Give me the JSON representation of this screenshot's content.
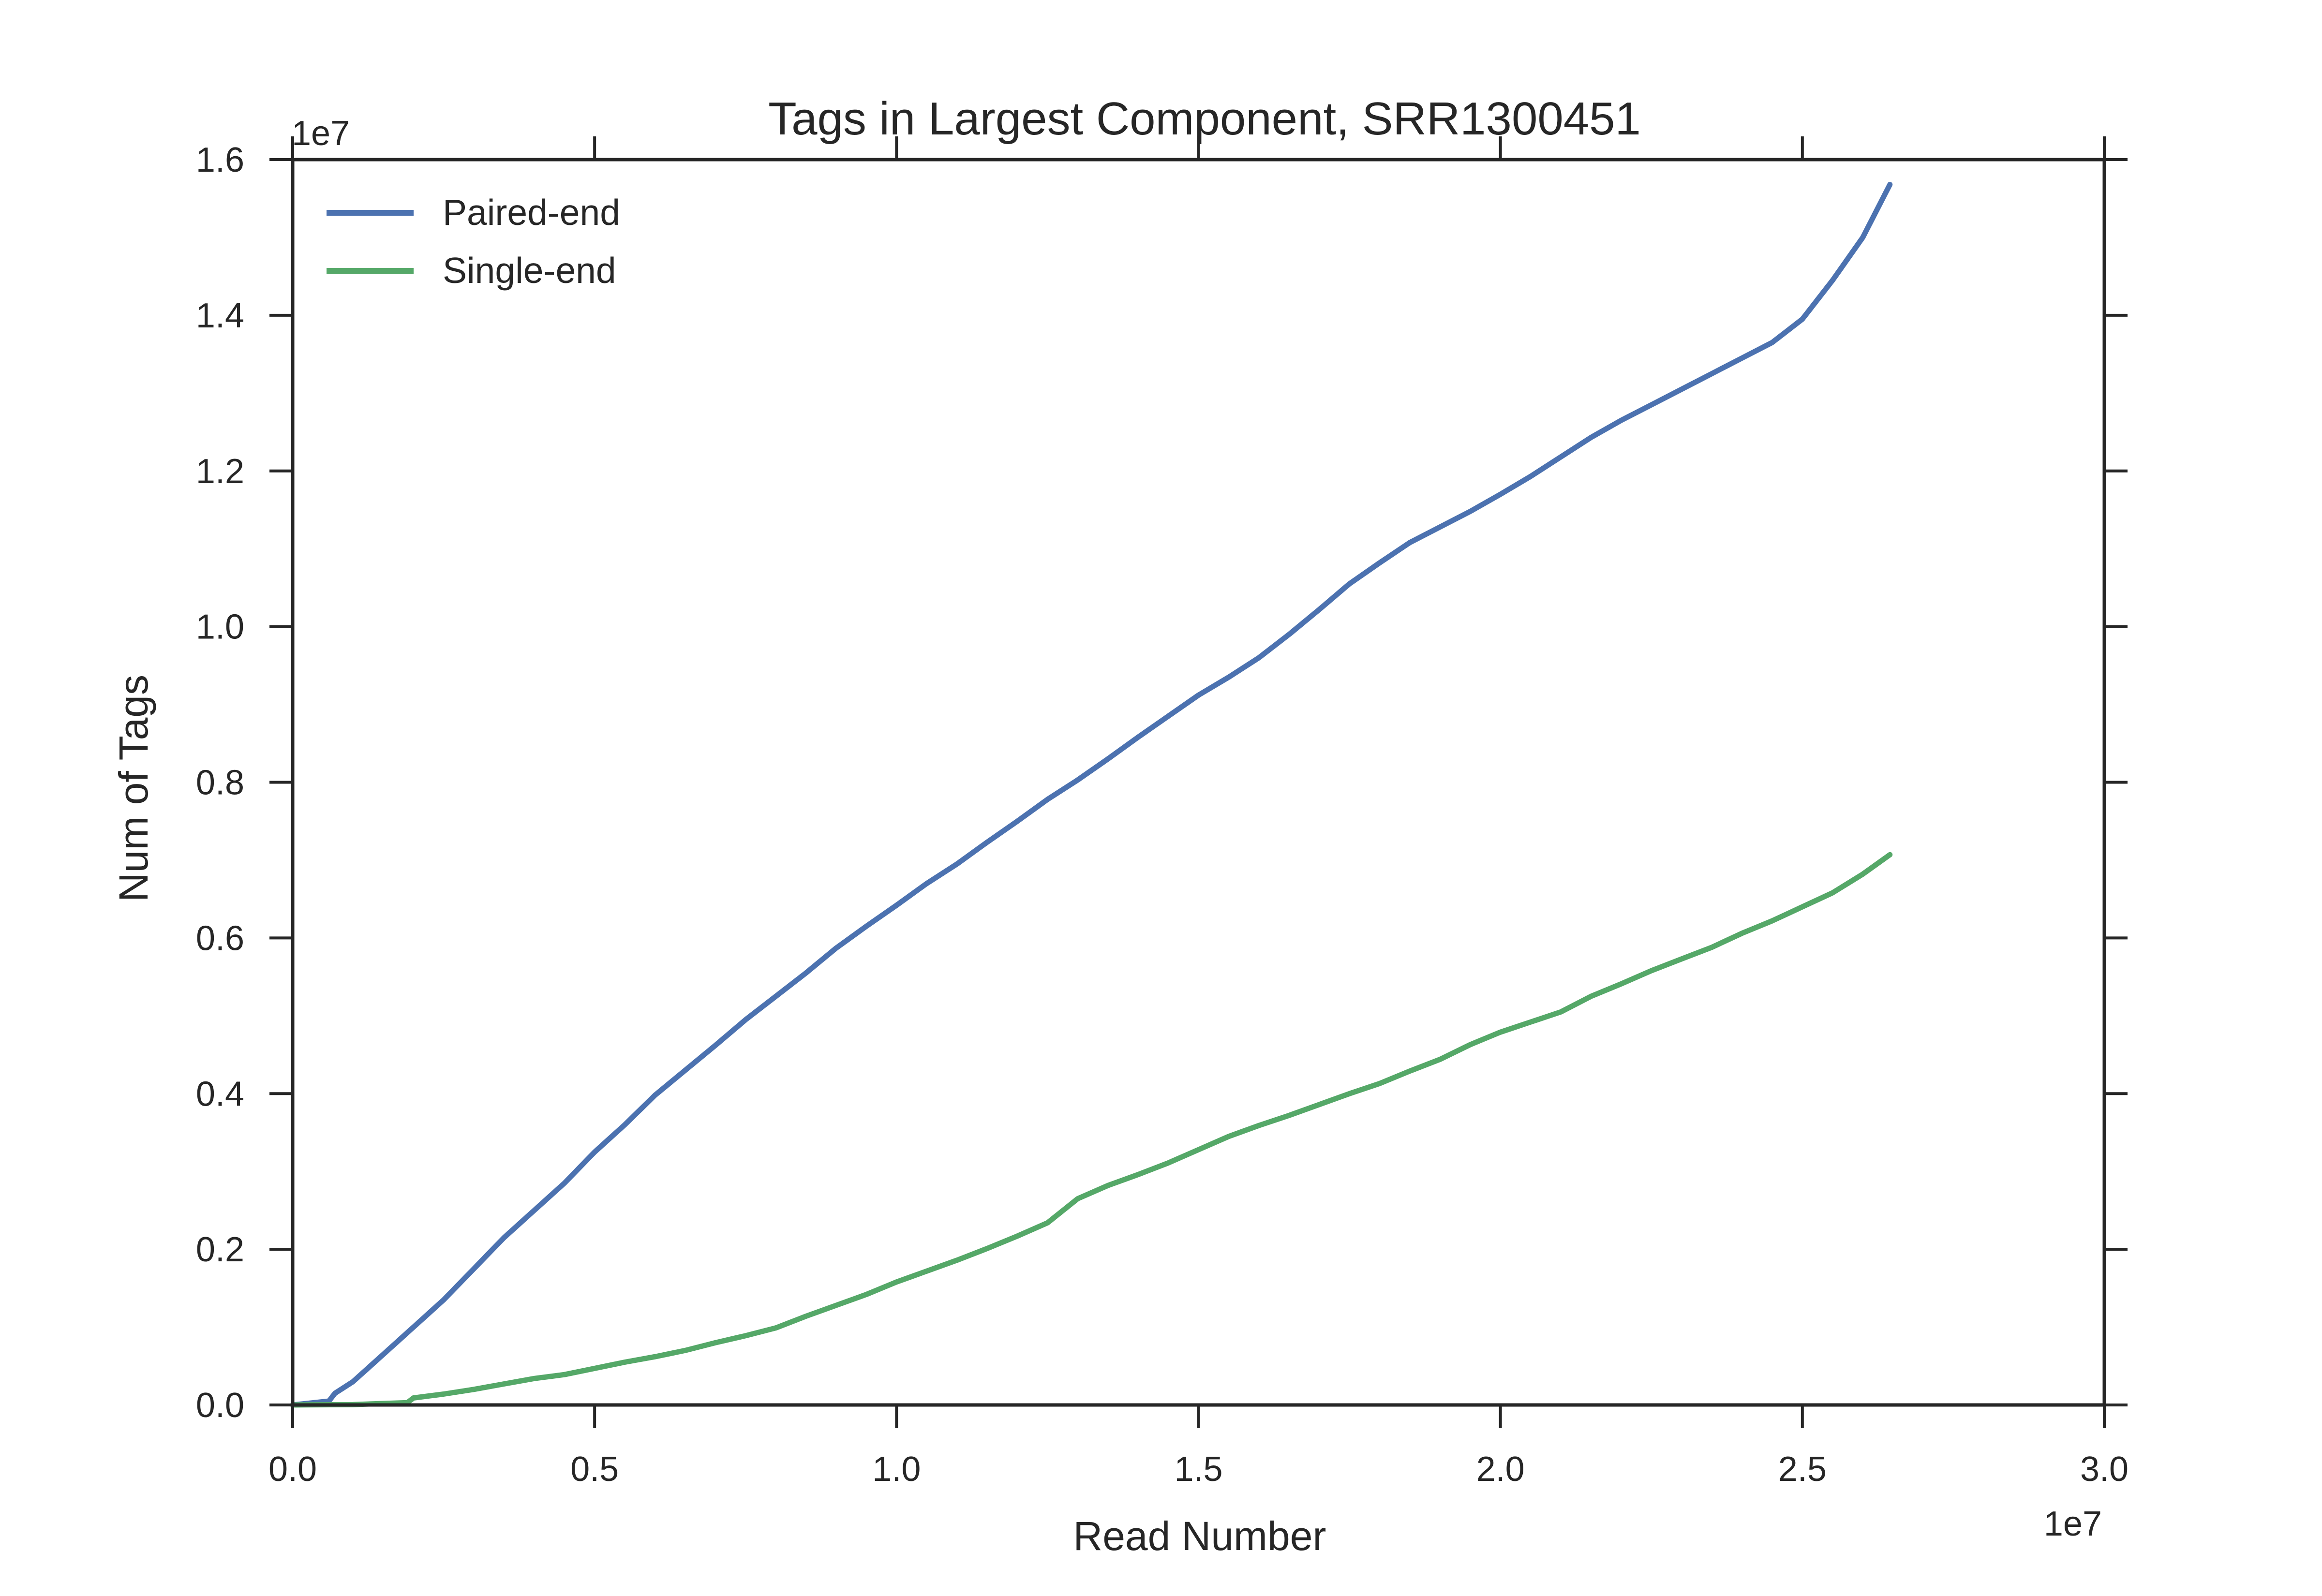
{
  "chart_data": {
    "type": "line",
    "title": "Tags in Largest Component, SRR1300451",
    "xlabel": "Read Number",
    "ylabel": "Num of Tags",
    "x_offset_label": "1e7",
    "y_offset_label": "1e7",
    "xlim": [
      0,
      30000000
    ],
    "ylim": [
      0,
      16000000
    ],
    "x_ticks": [
      0,
      5000000,
      10000000,
      15000000,
      20000000,
      25000000,
      30000000
    ],
    "x_tick_labels": [
      "0.0",
      "0.5",
      "1.0",
      "1.5",
      "2.0",
      "2.5",
      "3.0"
    ],
    "y_ticks": [
      0,
      2000000,
      4000000,
      6000000,
      8000000,
      10000000,
      12000000,
      14000000,
      16000000
    ],
    "y_tick_labels": [
      "0.0",
      "0.2",
      "0.4",
      "0.6",
      "0.8",
      "1.0",
      "1.2",
      "1.4",
      "1.6"
    ],
    "grid": false,
    "legend_position": "top-left",
    "series": [
      {
        "name": "Paired-end",
        "color": "#4c72b0",
        "x": [
          0,
          600000,
          700000,
          1000000,
          1500000,
          2000000,
          2500000,
          3000000,
          3500000,
          4000000,
          4500000,
          5000000,
          5500000,
          6000000,
          6500000,
          7000000,
          7500000,
          8000000,
          8500000,
          9000000,
          9500000,
          10000000,
          10500000,
          11000000,
          11500000,
          12000000,
          12500000,
          13000000,
          13500000,
          14000000,
          14500000,
          15000000,
          15500000,
          16000000,
          16500000,
          17000000,
          17500000,
          18000000,
          18500000,
          19000000,
          19500000,
          20000000,
          20500000,
          21000000,
          21500000,
          22000000,
          22500000,
          23000000,
          23500000,
          24000000,
          24500000,
          25000000,
          25500000,
          26000000,
          26450000
        ],
        "y": [
          0,
          50000,
          150000,
          300000,
          650000,
          1000000,
          1350000,
          1750000,
          2150000,
          2500000,
          2850000,
          3250000,
          3600000,
          3980000,
          4300000,
          4620000,
          4950000,
          5250000,
          5550000,
          5870000,
          6150000,
          6420000,
          6700000,
          6950000,
          7230000,
          7500000,
          7780000,
          8030000,
          8300000,
          8580000,
          8850000,
          9120000,
          9350000,
          9600000,
          9900000,
          10220000,
          10550000,
          10820000,
          11080000,
          11280000,
          11480000,
          11700000,
          11930000,
          12180000,
          12430000,
          12650000,
          12850000,
          13050000,
          13250000,
          13450000,
          13650000,
          13950000,
          14450000,
          15000000,
          15680000
        ]
      },
      {
        "name": "Single-end",
        "color": "#55a868",
        "x": [
          0,
          1000000,
          1900000,
          2000000,
          2500000,
          3000000,
          3500000,
          4000000,
          4500000,
          5000000,
          5500000,
          6000000,
          6500000,
          7000000,
          7500000,
          8000000,
          8500000,
          9000000,
          9500000,
          10000000,
          10500000,
          11000000,
          11500000,
          12000000,
          12500000,
          13000000,
          13500000,
          14000000,
          14500000,
          15000000,
          15500000,
          16000000,
          16500000,
          17000000,
          17500000,
          18000000,
          18500000,
          19000000,
          19500000,
          20000000,
          20500000,
          21000000,
          21500000,
          22000000,
          22500000,
          23000000,
          23500000,
          24000000,
          24500000,
          25000000,
          25500000,
          26000000,
          26450000
        ],
        "y": [
          0,
          5000,
          30000,
          90000,
          140000,
          200000,
          270000,
          340000,
          390000,
          470000,
          550000,
          620000,
          700000,
          800000,
          890000,
          990000,
          1140000,
          1280000,
          1420000,
          1580000,
          1720000,
          1860000,
          2010000,
          2170000,
          2340000,
          2650000,
          2820000,
          2960000,
          3110000,
          3280000,
          3450000,
          3590000,
          3720000,
          3860000,
          4000000,
          4130000,
          4290000,
          4440000,
          4630000,
          4790000,
          4920000,
          5050000,
          5250000,
          5410000,
          5580000,
          5730000,
          5880000,
          6060000,
          6220000,
          6400000,
          6580000,
          6820000,
          7070000
        ]
      }
    ]
  }
}
